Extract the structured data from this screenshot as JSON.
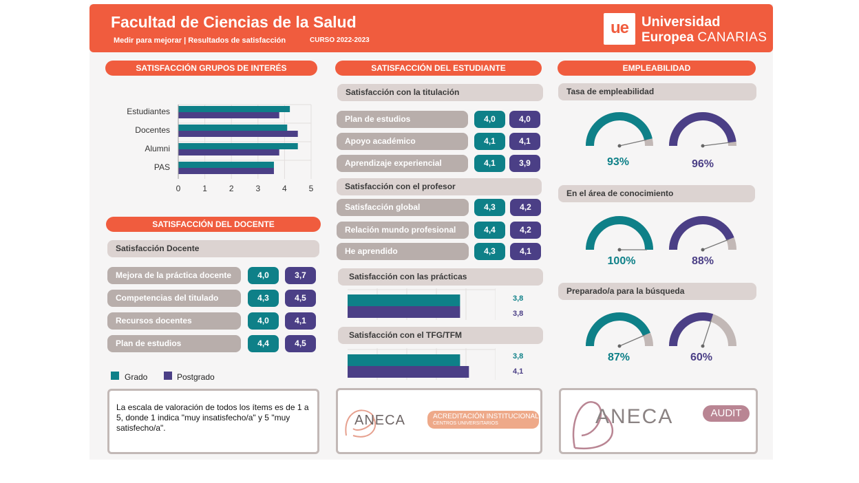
{
  "header": {
    "title": "Facultad de Ciencias de la Salud",
    "subtitle": "Medir para mejorar | Resultados de satisfacción",
    "course": "CURSO 2022-2023",
    "logo_mark": "ue",
    "logo_line1": "Universidad",
    "logo_line2a": "Europea",
    "logo_line2b": "CANARIAS"
  },
  "colors": {
    "brand": "#f05c3e",
    "grado": "#0e8088",
    "postgrado": "#4b3f86",
    "pill": "#b8aeab",
    "gauge_rest": "#c2b8b6"
  },
  "groups": {
    "title": "SATISFACCIÓN GRUPOS DE INTERÉS",
    "chart_data": {
      "type": "bar",
      "orientation": "horizontal",
      "categories": [
        "Estudiantes",
        "Docentes",
        "Alumni",
        "PAS"
      ],
      "series": [
        {
          "name": "Grado",
          "values": [
            4.2,
            4.1,
            4.5,
            3.6
          ]
        },
        {
          "name": "Postgrado",
          "values": [
            3.8,
            4.5,
            3.8,
            3.6
          ]
        }
      ],
      "xlim": [
        0,
        5
      ],
      "xticks": [
        "0",
        "1",
        "2",
        "3",
        "4",
        "5"
      ]
    }
  },
  "docente": {
    "title": "SATISFACCIÓN DEL DOCENTE",
    "subtitle": "Satisfacción Docente",
    "rows": [
      {
        "label": "Mejora de la práctica docente",
        "grado": "4,0",
        "postgrado": "3,7"
      },
      {
        "label": "Competencias del titulado",
        "grado": "4,3",
        "postgrado": "4,5"
      },
      {
        "label": "Recursos docentes",
        "grado": "4,0",
        "postgrado": "4,1"
      },
      {
        "label": "Plan de estudios",
        "grado": "4,4",
        "postgrado": "4,5"
      }
    ]
  },
  "legend": {
    "grado": "Grado",
    "postgrado": "Postgrado"
  },
  "note": "La escala de valoración de todos los ítems es de 1 a 5, donde 1 indica \"muy insatisfecho/a\" y 5 \"muy satisfecho/a\".",
  "estudiante": {
    "title": "SATISFACCIÓN DEL ESTUDIANTE",
    "titulacion": {
      "title": "Satisfacción con la titulación",
      "rows": [
        {
          "label": "Plan de estudios",
          "grado": "4,0",
          "postgrado": "4,0"
        },
        {
          "label": "Apoyo académico",
          "grado": "4,1",
          "postgrado": "4,1"
        },
        {
          "label": "Aprendizaje experiencial",
          "grado": "4,1",
          "postgrado": "3,9"
        }
      ]
    },
    "profesor": {
      "title": "Satisfacción con el profesor",
      "rows": [
        {
          "label": "Satisfacción global",
          "grado": "4,3",
          "postgrado": "4,2"
        },
        {
          "label": "Relación mundo profesional",
          "grado": "4,4",
          "postgrado": "4,2"
        },
        {
          "label": "He aprendido",
          "grado": "4,3",
          "postgrado": "4,1"
        }
      ]
    },
    "practicas": {
      "title": "Satisfacción con las prácticas",
      "grado": 3.8,
      "postgrado": 3.8,
      "grado_label": "3,8",
      "postgrado_label": "3,8"
    },
    "tfg": {
      "title": "Satisfacción con el TFG/TFM",
      "grado": 3.8,
      "postgrado": 4.1,
      "grado_label": "3,8",
      "postgrado_label": "4,1"
    },
    "bar_max": 5
  },
  "empleabilidad": {
    "title": "EMPLEABILIDAD",
    "blocks": [
      {
        "title": "Tasa de empleabilidad",
        "grado": 93,
        "postgrado": 96,
        "grado_label": "93%",
        "postgrado_label": "96%"
      },
      {
        "title": "En el área de conocimiento",
        "grado": 100,
        "postgrado": 88,
        "grado_label": "100%",
        "postgrado_label": "88%"
      },
      {
        "title": "Preparado/a para la búsqueda",
        "grado": 87,
        "postgrado": 60,
        "grado_label": "87%",
        "postgrado_label": "60%"
      }
    ]
  },
  "logos": {
    "aneca": "ANECA",
    "acreditacion_line1": "ACREDITACIÓN INSTITUCIONAL",
    "acreditacion_line2": "CENTROS UNIVERSITARIOS",
    "aneca2": "ANECA",
    "audit": "AUDIT"
  }
}
